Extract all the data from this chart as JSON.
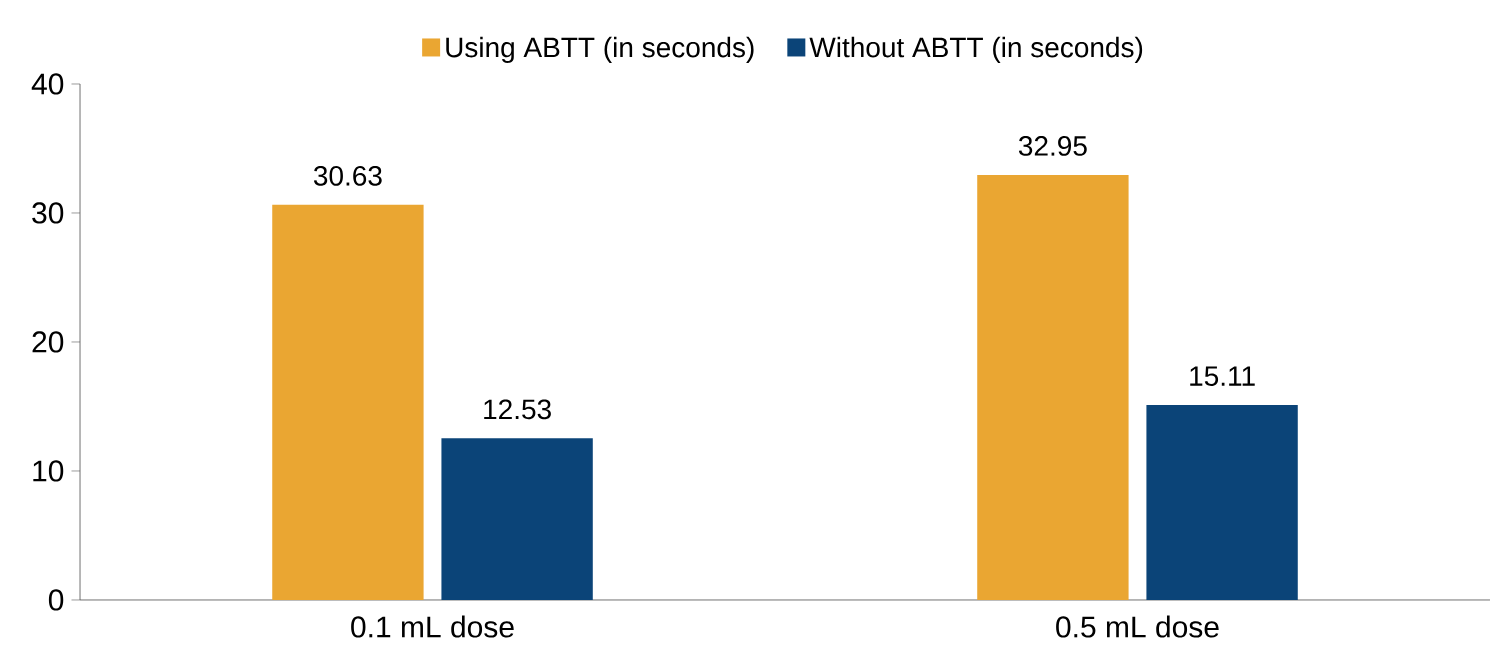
{
  "chart_data": {
    "type": "bar",
    "categories": [
      "0.1 mL dose",
      "0.5 mL dose"
    ],
    "series": [
      {
        "name": "Using ABTT (in seconds)",
        "color": "#eaa632",
        "values": [
          30.63,
          32.95
        ]
      },
      {
        "name": "Without ABTT (in seconds)",
        "color": "#0b4478",
        "values": [
          12.53,
          15.11
        ]
      }
    ],
    "ylim": [
      0,
      40
    ],
    "yticks": [
      0,
      10,
      20,
      30,
      40
    ],
    "data_labels": true,
    "legend": "top",
    "grid": false
  }
}
